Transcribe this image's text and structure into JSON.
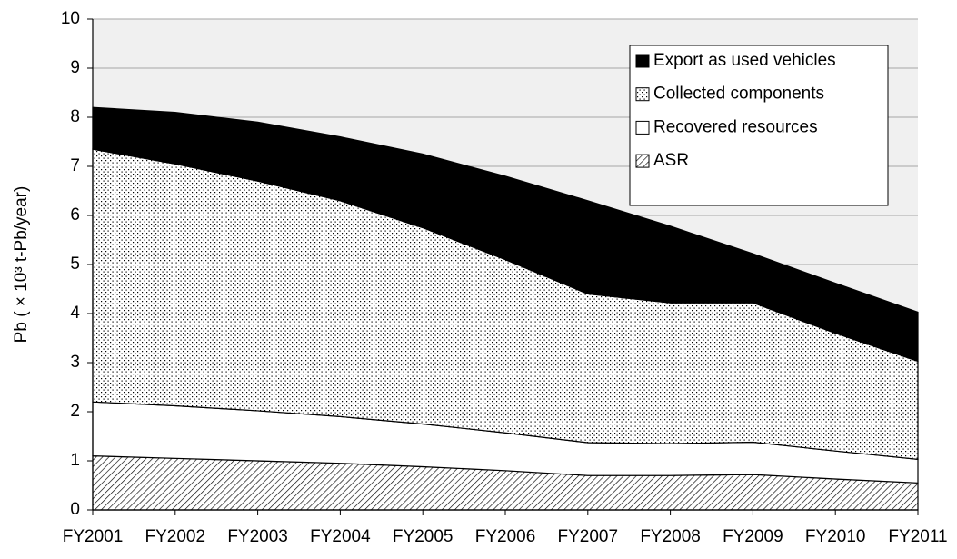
{
  "chart_data": {
    "type": "stacked_area",
    "y_label": "Pb ( × 10³ t-Pb/year)",
    "categories": [
      "FY2001",
      "FY2002",
      "FY2003",
      "FY2004",
      "FY2005",
      "FY2006",
      "FY2007",
      "FY2008",
      "FY2009",
      "FY2010",
      "FY2011"
    ],
    "series": [
      {
        "name": "ASR",
        "color": "#000000",
        "pattern": "hatch",
        "values": [
          1.1,
          1.05,
          1.0,
          0.95,
          0.88,
          0.8,
          0.7,
          0.7,
          0.72,
          0.63,
          0.55
        ]
      },
      {
        "name": "Recovered resources",
        "color": "#ffffff",
        "pattern": "none",
        "values": [
          1.1,
          1.07,
          1.02,
          0.95,
          0.87,
          0.77,
          0.67,
          0.65,
          0.66,
          0.57,
          0.48
        ]
      },
      {
        "name": "Collected components",
        "color": "#000000",
        "pattern": "dots",
        "values": [
          5.15,
          4.93,
          4.68,
          4.4,
          4.0,
          3.53,
          3.03,
          2.87,
          2.84,
          2.4,
          2.0
        ]
      },
      {
        "name": "Export as used vehicles",
        "color": "#000000",
        "pattern": "solid",
        "values": [
          0.85,
          1.05,
          1.2,
          1.3,
          1.5,
          1.7,
          1.9,
          1.56,
          1.0,
          1.02,
          1.0
        ]
      }
    ],
    "ylim": [
      0,
      10
    ],
    "yticks": [
      0,
      1,
      2,
      3,
      4,
      5,
      6,
      7,
      8,
      9,
      10
    ],
    "grid": true,
    "legend": "upper right"
  }
}
